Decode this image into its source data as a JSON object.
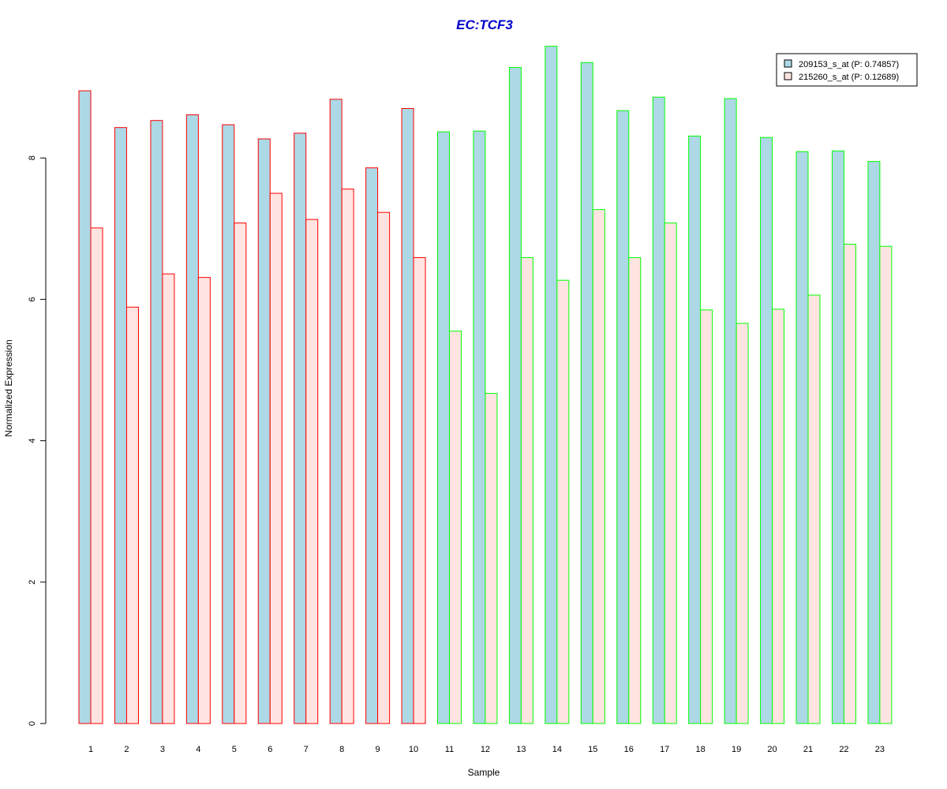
{
  "chart_data": {
    "type": "bar",
    "title": "EC:TCF3",
    "xlabel": "Sample",
    "ylabel": "Normalized Expression",
    "ylim": [
      0,
      9.6
    ],
    "yticks": [
      0,
      2,
      4,
      6,
      8
    ],
    "grid": false,
    "legend_position": "top-right",
    "categories": [
      "1",
      "2",
      "3",
      "4",
      "5",
      "6",
      "7",
      "8",
      "9",
      "10",
      "11",
      "12",
      "13",
      "14",
      "15",
      "16",
      "17",
      "18",
      "19",
      "20",
      "21",
      "22",
      "23"
    ],
    "sample_groups": [
      "red",
      "red",
      "red",
      "red",
      "red",
      "red",
      "red",
      "red",
      "red",
      "red",
      "green",
      "green",
      "green",
      "green",
      "green",
      "green",
      "green",
      "green",
      "green",
      "green",
      "green",
      "green",
      "green"
    ],
    "series": [
      {
        "name": "209153_s_at (P: 0.74857)",
        "values": [
          8.95,
          8.43,
          8.53,
          8.61,
          8.47,
          8.27,
          8.35,
          8.83,
          7.86,
          8.7,
          8.37,
          8.38,
          9.28,
          9.58,
          9.35,
          8.67,
          8.86,
          8.31,
          8.84,
          8.29,
          8.09,
          8.1,
          7.95
        ]
      },
      {
        "name": "215260_s_at (P: 0.12689)",
        "values": [
          7.01,
          5.89,
          6.36,
          6.31,
          7.08,
          7.5,
          7.13,
          7.56,
          7.23,
          6.59,
          5.55,
          4.67,
          6.59,
          6.27,
          7.27,
          6.59,
          7.08,
          5.85,
          5.66,
          5.86,
          6.06,
          6.78,
          6.75
        ]
      }
    ],
    "colors": {
      "title": "#0000cc",
      "series_fill": [
        "#add8e6",
        "#ffe4e1"
      ],
      "group_border": {
        "red": "#ff0000",
        "green": "#00ff00"
      },
      "axis": "#000000"
    }
  }
}
